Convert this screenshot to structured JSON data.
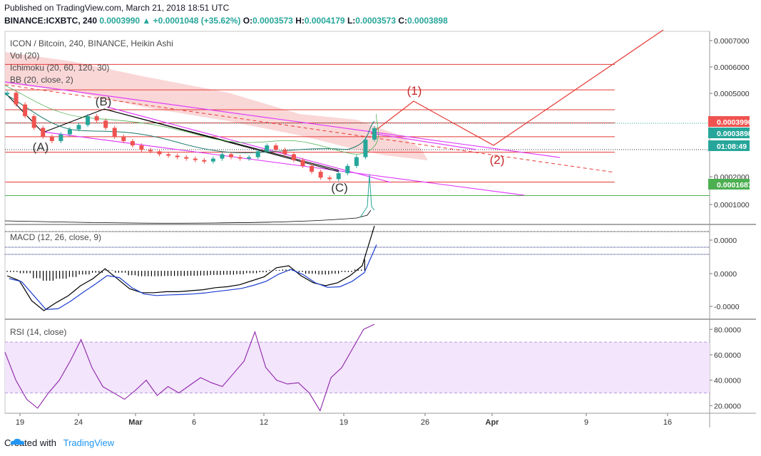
{
  "header": {
    "published_line": "Published on TradingView.com, March 21, 2018 18:51 UTC",
    "symbol": "BINANCE:ICXBTC, 240",
    "change": "0.0003990 ▲ +0.0001048 (+35.62%)",
    "o_label": "O:",
    "o_value": "0.0003573",
    "h_label": "H:",
    "h_value": "0.0004179",
    "l_label": "L:",
    "l_value": "0.0003573",
    "c_label": "C:",
    "c_value": "0.0003898"
  },
  "legends": {
    "main_title": "ICON / Bitcoin, 240, BINANCE, Heikin Ashi",
    "vol": "Vol (20)",
    "ichimoku": "Ichimoku (20, 60, 120, 30)",
    "bb": "BB (20, close, 2)",
    "macd": "MACD (12, 26, close, 9)",
    "rsi": "RSI (14, close)"
  },
  "colors": {
    "up": "#26a69a",
    "down": "#ef5350",
    "resistance": "#e53935",
    "support": "#4caf50",
    "channel": "#e040fb",
    "cloud": "#f8c9c9",
    "rsi_band": "#f3e5fc",
    "macd_line": "#000000",
    "signal_line": "#1e3fd1"
  },
  "footer": {
    "created_with": "Created with",
    "brand": "TradingView"
  },
  "chart_data": [
    {
      "type": "line",
      "panel": "price",
      "chart_style": "Heikin Ashi candles",
      "ylim": [
        7e-05,
        0.00073
      ],
      "x_tick_labels": [
        "19",
        "24",
        "Mar",
        "6",
        "12",
        "19",
        "26",
        "Apr",
        "9",
        "16"
      ],
      "y_tick_labels": [
        "0.0007000",
        "0.0006000",
        "0.0005000",
        "0.0002000",
        "0.0001000"
      ],
      "price_labels": [
        {
          "text": "0.0003990",
          "value": 0.000399,
          "color": "#ef5350"
        },
        {
          "text": "0.0003898",
          "value": 0.0003898,
          "color": "#26a69a"
        },
        {
          "text": "01:08:49",
          "value": 0.00031,
          "color": "#26a69a"
        },
        {
          "text": "0.0001687",
          "value": 0.0001687,
          "color": "#4caf50"
        }
      ],
      "horizontal_levels": [
        0.000617,
        0.00053,
        0.000462,
        0.000417,
        0.00037,
        0.000317,
        0.000215
      ],
      "support_level": 0.0001687,
      "wave_labels": [
        "(A)",
        "(B)",
        "(C)",
        "(1)",
        "(2)"
      ],
      "series": [
        {
          "values": [
            0.00052,
            0.00048,
            0.00044,
            0.0004,
            0.00037,
            0.000355,
            0.000378,
            0.000395,
            0.00041,
            0.00044,
            0.000425,
            0.0004,
            0.00037,
            0.000355,
            0.00034,
            0.000325,
            0.00032,
            0.00031,
            0.000305,
            0.0003,
            0.000295,
            0.00029,
            0.000285,
            0.000295,
            0.00031,
            0.0003,
            0.000295,
            0.0003,
            0.00032,
            0.00034,
            0.000325,
            0.00031,
            0.00029,
            0.00027,
            0.00025,
            0.00023,
            0.000225,
            0.000245,
            0.00027,
            0.0003,
            0.00036,
            0.000399
          ]
        }
      ]
    },
    {
      "type": "line",
      "panel": "macd",
      "y_tick_labels": [
        "0.0000",
        "0.0000",
        "-0.0000"
      ],
      "series": [
        {
          "name": "MACD",
          "values": [
            -0.5,
            -1.0,
            -3.0,
            -4.0,
            -3.2,
            -2.5,
            -1.5,
            -0.8,
            0.2,
            -0.8,
            -1.8,
            -2.2,
            -2.2,
            -2.1,
            -2.1,
            -2.0,
            -1.9,
            -1.7,
            -1.6,
            -1.4,
            -1.0,
            -0.6,
            0.3,
            0.5,
            -0.5,
            -1.2,
            -1.5,
            -1.2,
            -0.5,
            0.5,
            4.5
          ]
        }
      ]
    },
    {
      "type": "line",
      "panel": "rsi",
      "ylim": [
        14,
        88
      ],
      "band": [
        30,
        70
      ],
      "y_tick_labels": [
        "80.0000",
        "60.0000",
        "40.0000",
        "20.0000"
      ],
      "series": [
        {
          "values": [
            62,
            40,
            25,
            18,
            30,
            40,
            55,
            72,
            50,
            35,
            30,
            25,
            32,
            40,
            28,
            35,
            30,
            36,
            42,
            38,
            35,
            45,
            55,
            78,
            50,
            40,
            37,
            38,
            30,
            16,
            42,
            50,
            65,
            80,
            84
          ]
        }
      ]
    }
  ]
}
